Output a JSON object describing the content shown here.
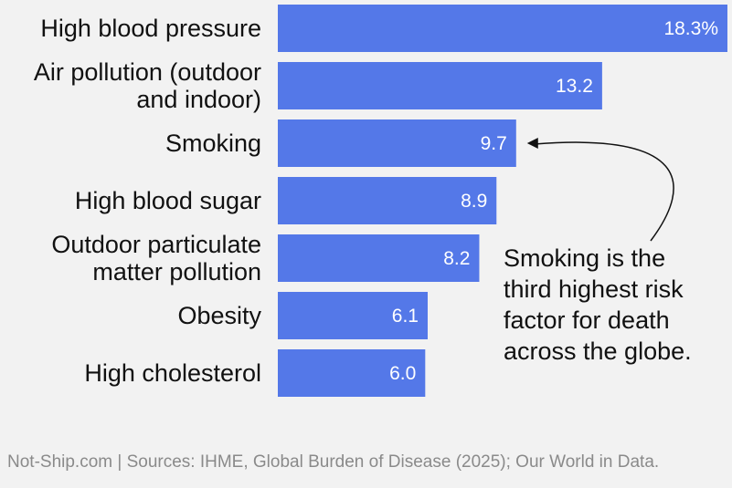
{
  "chart_data": {
    "type": "bar",
    "orientation": "horizontal",
    "categories": [
      [
        "High blood pressure"
      ],
      [
        "Air pollution (outdoor",
        "and indoor)"
      ],
      [
        "Smoking"
      ],
      [
        "High blood sugar"
      ],
      [
        "Outdoor particulate",
        "matter pollution"
      ],
      [
        "Obesity"
      ],
      [
        "High cholesterol"
      ]
    ],
    "values": [
      18.3,
      13.2,
      9.7,
      8.9,
      8.2,
      6.1,
      6.0
    ],
    "value_labels": [
      "18.3%",
      "13.2",
      "9.7",
      "8.9",
      "8.2",
      "6.1",
      "6.0"
    ],
    "bar_color": "#5478e8",
    "annotation": {
      "lines": [
        "Smoking is the",
        "third highest risk",
        "factor for death",
        "across the globe."
      ],
      "target_category_index": 2
    }
  },
  "source": "Not-Ship.com | Sources: IHME, Global Burden of Disease (2025); Our World in Data."
}
